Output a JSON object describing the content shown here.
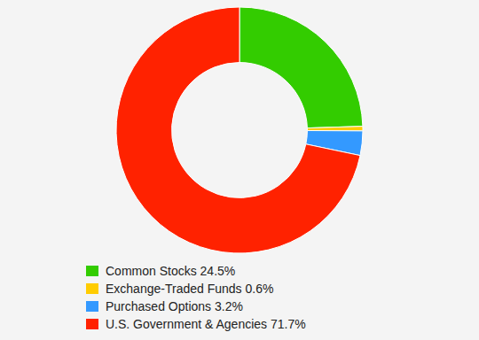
{
  "chart_data": {
    "type": "donut",
    "categories": [
      "Common Stocks 24.5%",
      "Exchange-Traded Funds 0.6%",
      "Purchased Options 3.2%",
      "U.S. Government & Agencies 71.7%"
    ],
    "values": [
      24.5,
      0.6,
      3.2,
      71.7
    ],
    "colors": [
      "#33cc00",
      "#ffcc00",
      "#3399ff",
      "#ff2200"
    ],
    "legend": "bottom"
  }
}
